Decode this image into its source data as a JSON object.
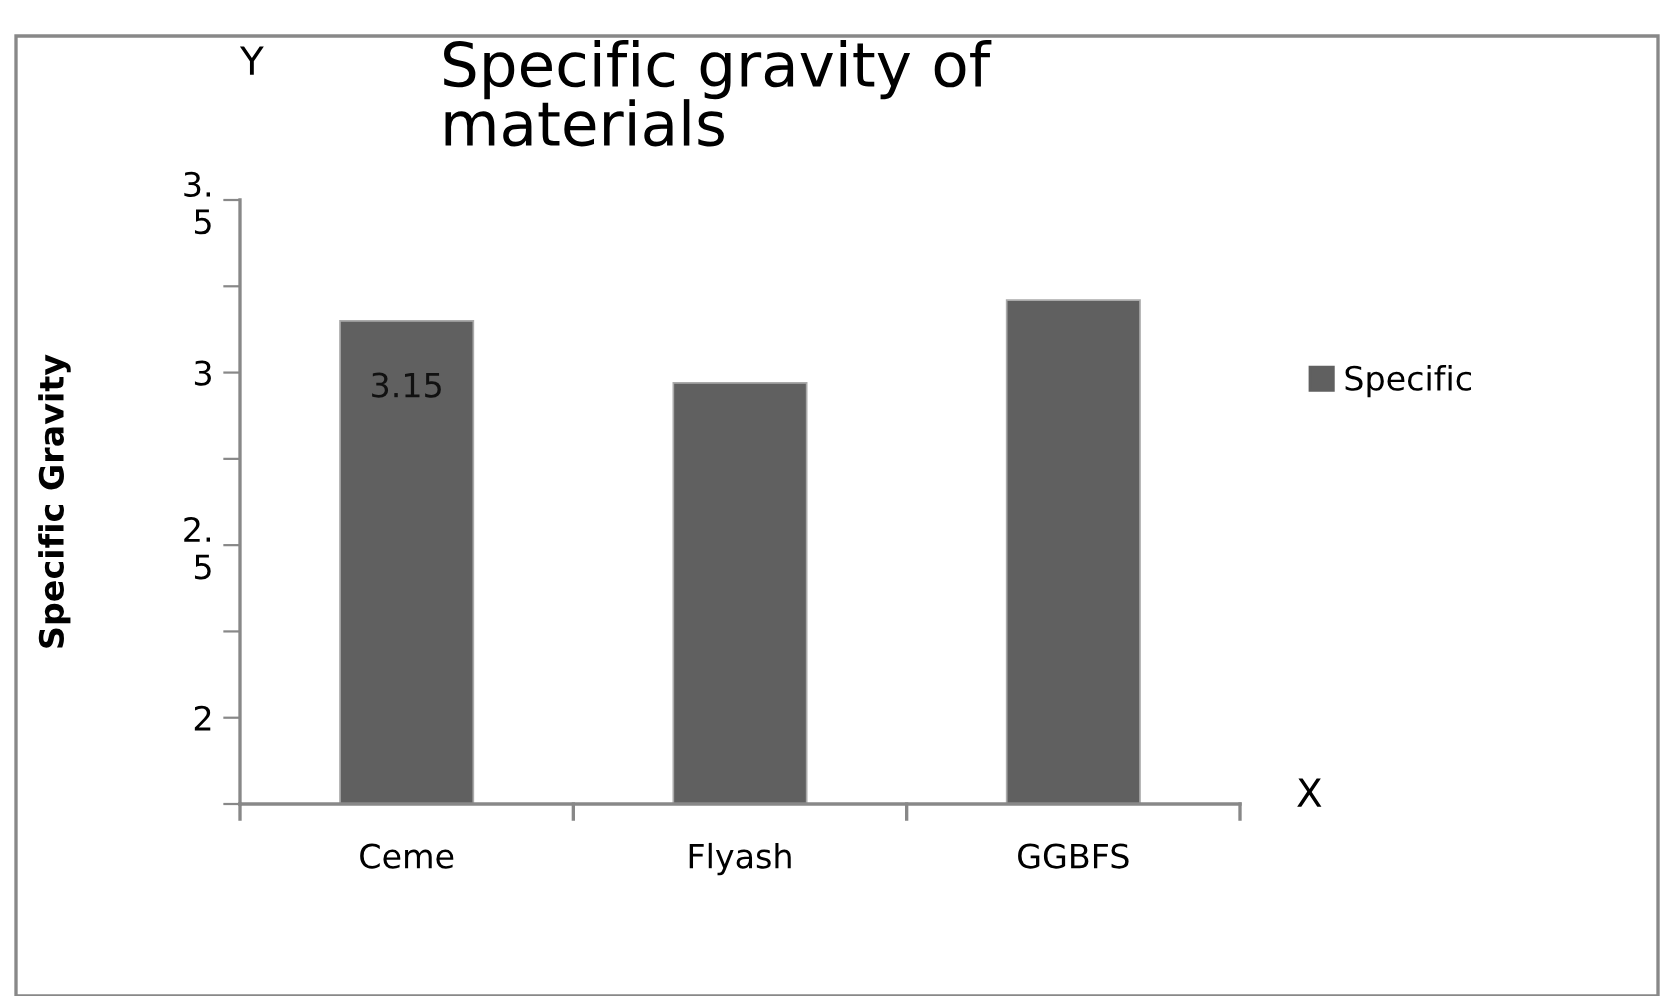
{
  "chart_data": {
    "type": "bar",
    "title": "Specific gravity of\nmaterials",
    "ylabel": "Specific Gravity",
    "categories": [
      "Ceme",
      "Flyash",
      "GGBFS"
    ],
    "series": [
      {
        "name": "Specific",
        "color": "#606060",
        "values": [
          3.15,
          2.97,
          3.21
        ],
        "value_labels": [
          "3.15",
          null,
          null
        ]
      }
    ],
    "ylim": [
      1.75,
      3.5
    ],
    "yticks": [
      {
        "value": 1.75,
        "label": null
      },
      2,
      {
        "value": 2.25,
        "label": null
      },
      {
        "value": 2.5,
        "label": "2.\n5"
      },
      {
        "value": 2.75,
        "label": null
      },
      3,
      {
        "value": 3.25,
        "label": null
      },
      {
        "value": 3.5,
        "label": "3.\n5"
      }
    ],
    "annotations": [
      "Y",
      "X"
    ],
    "legend": "right",
    "grid": false
  }
}
